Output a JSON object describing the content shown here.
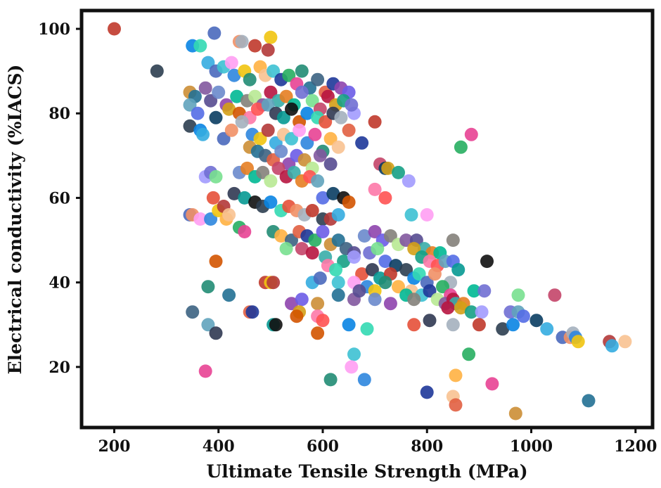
{
  "chart_data": {
    "type": "scatter",
    "title": "",
    "xlabel": "Ultimate Tensile Strength (MPa)",
    "ylabel": "Electrical conductivity (%IACS)",
    "xlim": [
      140,
      1230
    ],
    "ylim": [
      6,
      104
    ],
    "xticks": [
      200,
      400,
      600,
      800,
      1000,
      1200
    ],
    "yticks": [
      20,
      40,
      60,
      80,
      100
    ],
    "xtick_labels": [
      "200",
      "400",
      "600",
      "800",
      "1000",
      "1200"
    ],
    "ytick_labels": [
      "20",
      "40",
      "60",
      "80",
      "100"
    ],
    "grid": false,
    "legend": "none",
    "palette": [
      "#c0392b",
      "#2e86de",
      "#27ae60",
      "#8e44ad",
      "#e67e22",
      "#16a085",
      "#d35400",
      "#2c3e50",
      "#f1c40f",
      "#e84393",
      "#6c5ce7",
      "#00b894",
      "#a29bfe",
      "#fd79a8",
      "#0984e3",
      "#b33939",
      "#218c74",
      "#cc8e35",
      "#84817a",
      "#706fd3",
      "#ff5252",
      "#33d9b2",
      "#34ace0",
      "#ffb142",
      "#227093",
      "#b8e994",
      "#78e08f",
      "#60a3bc",
      "#e55039",
      "#4a69bd",
      "#f8c291",
      "#3c6382",
      "#82589f",
      "#c44569",
      "#546de5",
      "#303952",
      "#f19066",
      "#3dc1d3",
      "#e15f41",
      "#574b90",
      "#b71540",
      "#0a3d62",
      "#079992",
      "#a4b0be",
      "#ff9ff3",
      "#1e3799",
      "#6a89cc",
      "#38ada9",
      "#d4a017",
      "#111111"
    ],
    "series": [
      {
        "name": "",
        "points": [
          [
            200,
            100
          ],
          [
            282,
            90
          ],
          [
            350,
            96
          ],
          [
            365,
            96
          ],
          [
            392,
            99
          ],
          [
            440,
            97
          ],
          [
            445,
            97
          ],
          [
            470,
            96
          ],
          [
            500,
            98
          ],
          [
            495,
            95
          ],
          [
            380,
            92
          ],
          [
            395,
            90
          ],
          [
            410,
            91
          ],
          [
            425,
            92
          ],
          [
            430,
            89
          ],
          [
            450,
            90
          ],
          [
            460,
            88
          ],
          [
            480,
            91
          ],
          [
            490,
            89
          ],
          [
            505,
            90
          ],
          [
            520,
            88
          ],
          [
            535,
            89
          ],
          [
            550,
            87
          ],
          [
            560,
            90
          ],
          [
            575,
            86
          ],
          [
            590,
            88
          ],
          [
            605,
            85
          ],
          [
            620,
            87
          ],
          [
            635,
            86
          ],
          [
            650,
            85
          ],
          [
            345,
            85
          ],
          [
            355,
            84
          ],
          [
            375,
            86
          ],
          [
            385,
            83
          ],
          [
            400,
            85
          ],
          [
            415,
            82
          ],
          [
            435,
            84
          ],
          [
            455,
            83
          ],
          [
            470,
            84
          ],
          [
            485,
            82
          ],
          [
            500,
            85
          ],
          [
            515,
            83
          ],
          [
            530,
            84
          ],
          [
            545,
            82
          ],
          [
            560,
            85
          ],
          [
            580,
            83
          ],
          [
            595,
            81
          ],
          [
            610,
            84
          ],
          [
            625,
            82
          ],
          [
            640,
            83
          ],
          [
            660,
            80
          ],
          [
            655,
            82
          ],
          [
            345,
            82
          ],
          [
            360,
            80
          ],
          [
            395,
            79
          ],
          [
            420,
            81
          ],
          [
            440,
            80
          ],
          [
            460,
            79
          ],
          [
            475,
            81
          ],
          [
            495,
            82
          ],
          [
            510,
            80
          ],
          [
            525,
            79
          ],
          [
            540,
            81
          ],
          [
            555,
            78
          ],
          [
            570,
            80
          ],
          [
            590,
            79
          ],
          [
            605,
            78
          ],
          [
            620,
            80
          ],
          [
            635,
            79
          ],
          [
            700,
            78
          ],
          [
            345,
            77
          ],
          [
            365,
            76
          ],
          [
            370,
            75
          ],
          [
            410,
            74
          ],
          [
            425,
            76
          ],
          [
            445,
            78
          ],
          [
            465,
            75
          ],
          [
            480,
            74
          ],
          [
            495,
            76
          ],
          [
            510,
            73
          ],
          [
            525,
            75
          ],
          [
            540,
            74
          ],
          [
            555,
            76
          ],
          [
            570,
            73
          ],
          [
            585,
            75
          ],
          [
            600,
            71
          ],
          [
            615,
            74
          ],
          [
            630,
            72
          ],
          [
            650,
            76
          ],
          [
            675,
            73
          ],
          [
            865,
            72
          ],
          [
            885,
            75
          ],
          [
            460,
            72
          ],
          [
            475,
            71
          ],
          [
            490,
            70
          ],
          [
            505,
            69
          ],
          [
            520,
            71
          ],
          [
            535,
            68
          ],
          [
            550,
            70
          ],
          [
            565,
            69
          ],
          [
            580,
            67
          ],
          [
            595,
            70
          ],
          [
            615,
            68
          ],
          [
            440,
            66
          ],
          [
            455,
            67
          ],
          [
            470,
            65
          ],
          [
            485,
            66
          ],
          [
            500,
            64
          ],
          [
            515,
            67
          ],
          [
            530,
            65
          ],
          [
            545,
            66
          ],
          [
            560,
            64
          ],
          [
            375,
            65
          ],
          [
            385,
            66
          ],
          [
            395,
            65
          ],
          [
            710,
            68
          ],
          [
            720,
            67
          ],
          [
            725,
            67
          ],
          [
            745,
            66
          ],
          [
            765,
            64
          ],
          [
            575,
            65
          ],
          [
            590,
            64
          ],
          [
            600,
            60
          ],
          [
            620,
            61
          ],
          [
            640,
            60
          ],
          [
            650,
            59
          ],
          [
            700,
            62
          ],
          [
            720,
            60
          ],
          [
            390,
            60
          ],
          [
            430,
            61
          ],
          [
            450,
            60
          ],
          [
            470,
            59
          ],
          [
            485,
            58
          ],
          [
            500,
            59
          ],
          [
            520,
            57
          ],
          [
            535,
            58
          ],
          [
            550,
            57
          ],
          [
            565,
            56
          ],
          [
            580,
            57
          ],
          [
            600,
            55
          ],
          [
            615,
            55
          ],
          [
            630,
            56
          ],
          [
            345,
            56
          ],
          [
            350,
            56
          ],
          [
            365,
            55
          ],
          [
            385,
            55
          ],
          [
            400,
            57
          ],
          [
            410,
            58
          ],
          [
            415,
            55
          ],
          [
            420,
            56
          ],
          [
            770,
            56
          ],
          [
            800,
            56
          ],
          [
            440,
            53
          ],
          [
            450,
            52
          ],
          [
            505,
            52
          ],
          [
            520,
            51
          ],
          [
            540,
            50
          ],
          [
            555,
            52
          ],
          [
            570,
            51
          ],
          [
            585,
            50
          ],
          [
            600,
            52
          ],
          [
            615,
            49
          ],
          [
            630,
            50
          ],
          [
            645,
            48
          ],
          [
            660,
            47
          ],
          [
            680,
            51
          ],
          [
            700,
            52
          ],
          [
            715,
            50
          ],
          [
            730,
            51
          ],
          [
            745,
            49
          ],
          [
            760,
            50
          ],
          [
            780,
            50
          ],
          [
            795,
            48
          ],
          [
            810,
            47
          ],
          [
            825,
            47
          ],
          [
            850,
            50
          ],
          [
            530,
            48
          ],
          [
            560,
            48
          ],
          [
            580,
            47
          ],
          [
            605,
            46
          ],
          [
            640,
            45
          ],
          [
            660,
            46
          ],
          [
            690,
            47
          ],
          [
            705,
            48
          ],
          [
            720,
            45
          ],
          [
            740,
            44
          ],
          [
            775,
            48
          ],
          [
            790,
            46
          ],
          [
            805,
            45
          ],
          [
            820,
            44
          ],
          [
            835,
            45
          ],
          [
            850,
            45
          ],
          [
            860,
            43
          ],
          [
            915,
            45
          ],
          [
            395,
            45
          ],
          [
            610,
            44
          ],
          [
            625,
            43
          ],
          [
            675,
            42
          ],
          [
            695,
            43
          ],
          [
            710,
            41
          ],
          [
            730,
            42
          ],
          [
            760,
            43
          ],
          [
            775,
            41
          ],
          [
            785,
            42
          ],
          [
            800,
            40
          ],
          [
            815,
            42
          ],
          [
            845,
            40
          ],
          [
            490,
            40
          ],
          [
            500,
            40
          ],
          [
            505,
            40
          ],
          [
            580,
            40
          ],
          [
            595,
            41
          ],
          [
            630,
            40
          ],
          [
            660,
            40
          ],
          [
            685,
            39
          ],
          [
            700,
            38
          ],
          [
            720,
            40
          ],
          [
            745,
            39
          ],
          [
            770,
            38
          ],
          [
            790,
            37
          ],
          [
            805,
            38
          ],
          [
            830,
            39
          ],
          [
            845,
            37
          ],
          [
            380,
            39
          ],
          [
            420,
            37
          ],
          [
            350,
            33
          ],
          [
            460,
            33
          ],
          [
            465,
            33
          ],
          [
            540,
            35
          ],
          [
            560,
            36
          ],
          [
            590,
            35
          ],
          [
            630,
            37
          ],
          [
            660,
            36
          ],
          [
            670,
            38
          ],
          [
            700,
            36
          ],
          [
            730,
            35
          ],
          [
            760,
            37
          ],
          [
            775,
            36
          ],
          [
            820,
            36
          ],
          [
            835,
            35
          ],
          [
            850,
            36
          ],
          [
            855,
            35
          ],
          [
            870,
            35
          ],
          [
            890,
            38
          ],
          [
            910,
            38
          ],
          [
            975,
            37
          ],
          [
            1045,
            37
          ],
          [
            840,
            34
          ],
          [
            865,
            34
          ],
          [
            885,
            33
          ],
          [
            905,
            33
          ],
          [
            960,
            33
          ],
          [
            975,
            33
          ],
          [
            985,
            32
          ],
          [
            1010,
            31
          ],
          [
            555,
            33
          ],
          [
            550,
            32
          ],
          [
            590,
            32
          ],
          [
            600,
            31
          ],
          [
            380,
            30
          ],
          [
            395,
            28
          ],
          [
            505,
            30
          ],
          [
            510,
            30
          ],
          [
            590,
            28
          ],
          [
            650,
            30
          ],
          [
            685,
            29
          ],
          [
            775,
            30
          ],
          [
            805,
            31
          ],
          [
            850,
            30
          ],
          [
            900,
            30
          ],
          [
            945,
            29
          ],
          [
            965,
            30
          ],
          [
            1030,
            29
          ],
          [
            1060,
            27
          ],
          [
            1075,
            27
          ],
          [
            1080,
            28
          ],
          [
            1085,
            27
          ],
          [
            1090,
            26
          ],
          [
            1150,
            26
          ],
          [
            1155,
            25
          ],
          [
            1180,
            26
          ],
          [
            660,
            23
          ],
          [
            655,
            20
          ],
          [
            680,
            17
          ],
          [
            375,
            19
          ],
          [
            615,
            17
          ],
          [
            855,
            18
          ],
          [
            850,
            13
          ],
          [
            855,
            11
          ],
          [
            800,
            14
          ],
          [
            880,
            23
          ],
          [
            925,
            16
          ],
          [
            970,
            9
          ],
          [
            1110,
            12
          ]
        ]
      }
    ]
  }
}
